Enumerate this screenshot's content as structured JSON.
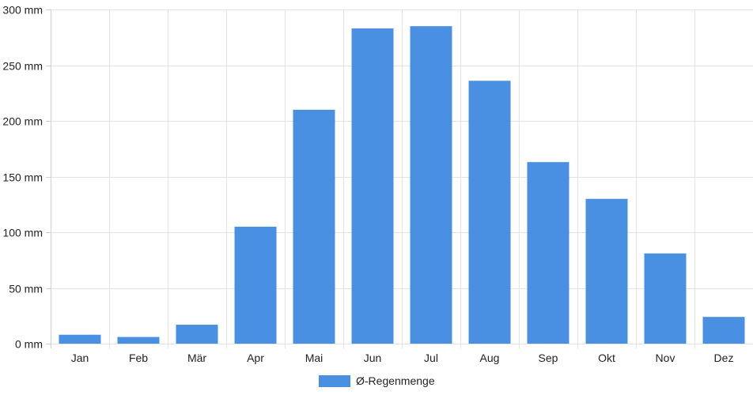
{
  "chart_data": {
    "type": "bar",
    "categories": [
      "Jan",
      "Feb",
      "Mär",
      "Apr",
      "Mai",
      "Jun",
      "Jul",
      "Aug",
      "Sep",
      "Okt",
      "Nov",
      "Dez"
    ],
    "series": [
      {
        "name": "Ø-Regenmenge",
        "color": "#4a90e2",
        "values": [
          8,
          6,
          17,
          105,
          210,
          283,
          285,
          236,
          163,
          130,
          81,
          24
        ]
      }
    ],
    "yunit": "mm",
    "ylim": [
      0,
      300
    ],
    "yticks": [
      0,
      50,
      100,
      150,
      200,
      250,
      300
    ],
    "ytick_labels": [
      "0 mm",
      "50 mm",
      "100 mm",
      "150 mm",
      "200 mm",
      "250 mm",
      "300 mm"
    ],
    "grid": true,
    "legend_position": "bottom-center"
  }
}
